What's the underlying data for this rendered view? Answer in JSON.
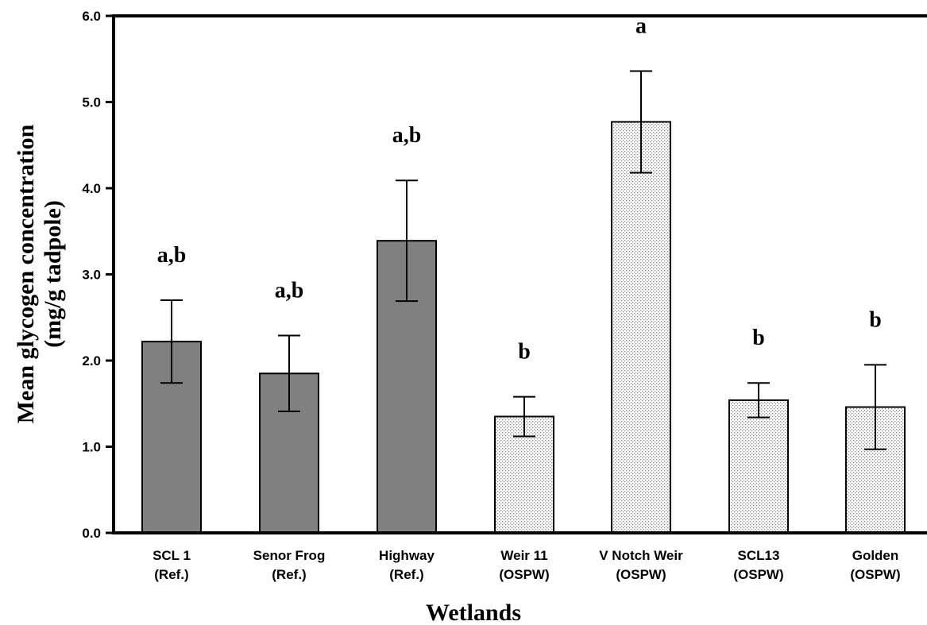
{
  "chart_data": {
    "type": "bar",
    "title": "",
    "xlabel": "Wetlands",
    "ylabel": [
      "Mean glycogen concentration",
      "(mg/g tadpole)"
    ],
    "ylim": [
      0,
      6
    ],
    "yticks": [
      0.0,
      1.0,
      2.0,
      3.0,
      4.0,
      5.0,
      6.0
    ],
    "ytick_labels": [
      "0.0",
      "1.0",
      "2.0",
      "3.0",
      "4.0",
      "5.0",
      "6.0"
    ],
    "grid": false,
    "categories": [
      [
        "SCL 1",
        "(Ref.)"
      ],
      [
        "Senor Frog",
        "(Ref.)"
      ],
      [
        "Highway",
        "(Ref.)"
      ],
      [
        "Weir 11",
        "(OSPW)"
      ],
      [
        "V Notch Weir",
        "(OSPW)"
      ],
      [
        "SCL13",
        "(OSPW)"
      ],
      [
        "Golden",
        "(OSPW)"
      ]
    ],
    "values": [
      2.22,
      1.85,
      3.39,
      1.35,
      4.77,
      1.54,
      1.46
    ],
    "errors": [
      0.48,
      0.44,
      0.7,
      0.23,
      0.59,
      0.2,
      0.49
    ],
    "significance": [
      "a,b",
      "a,b",
      "a,b",
      "b",
      "a",
      "b",
      "b"
    ],
    "groups": [
      "ref",
      "ref",
      "ref",
      "ospw",
      "ospw",
      "ospw",
      "ospw"
    ],
    "colors": {
      "ref": "#808080",
      "ospw_fill": "#ffffff",
      "ospw_dots": "#9a9a9a",
      "stroke": "#000000"
    }
  }
}
